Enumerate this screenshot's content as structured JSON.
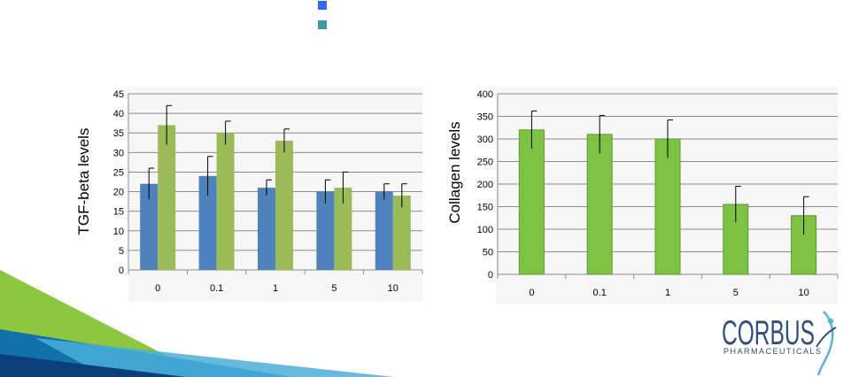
{
  "legend": {
    "entries": [
      {
        "color": "#3366ff",
        "label": ""
      },
      {
        "color": "#3a9aa8",
        "label": ""
      }
    ]
  },
  "chart_data": [
    {
      "type": "bar",
      "ylabel": "TGF-beta levels",
      "xlabel": "",
      "categories": [
        "0",
        "0.1",
        "1",
        "5",
        "10"
      ],
      "ylim": [
        0,
        45
      ],
      "yticks": [
        0,
        5,
        10,
        15,
        20,
        25,
        30,
        35,
        40,
        45
      ],
      "grid": true,
      "series": [
        {
          "color": "#4f81bd",
          "values": [
            22,
            24,
            21,
            20,
            20
          ],
          "errors": [
            4,
            5,
            2,
            3,
            2
          ]
        },
        {
          "color": "#9bbb59",
          "values": [
            37,
            35,
            33,
            21,
            19
          ],
          "errors": [
            5,
            3,
            3,
            4,
            3
          ]
        }
      ]
    },
    {
      "type": "bar",
      "ylabel": "Collagen levels",
      "xlabel": "",
      "categories": [
        "0",
        "0.1",
        "1",
        "5",
        "10"
      ],
      "ylim": [
        0,
        400
      ],
      "yticks": [
        0,
        50,
        100,
        150,
        200,
        250,
        300,
        350,
        400
      ],
      "grid": true,
      "series": [
        {
          "color": "#7dc242",
          "values": [
            320,
            310,
            300,
            155,
            130
          ],
          "errors": [
            42,
            42,
            42,
            40,
            42
          ]
        }
      ]
    }
  ],
  "logo": {
    "name": "CORBUS",
    "tagline": "PHARMACEUTICALS",
    "color": "#2e4f86",
    "accent": "#5ab4d6"
  }
}
